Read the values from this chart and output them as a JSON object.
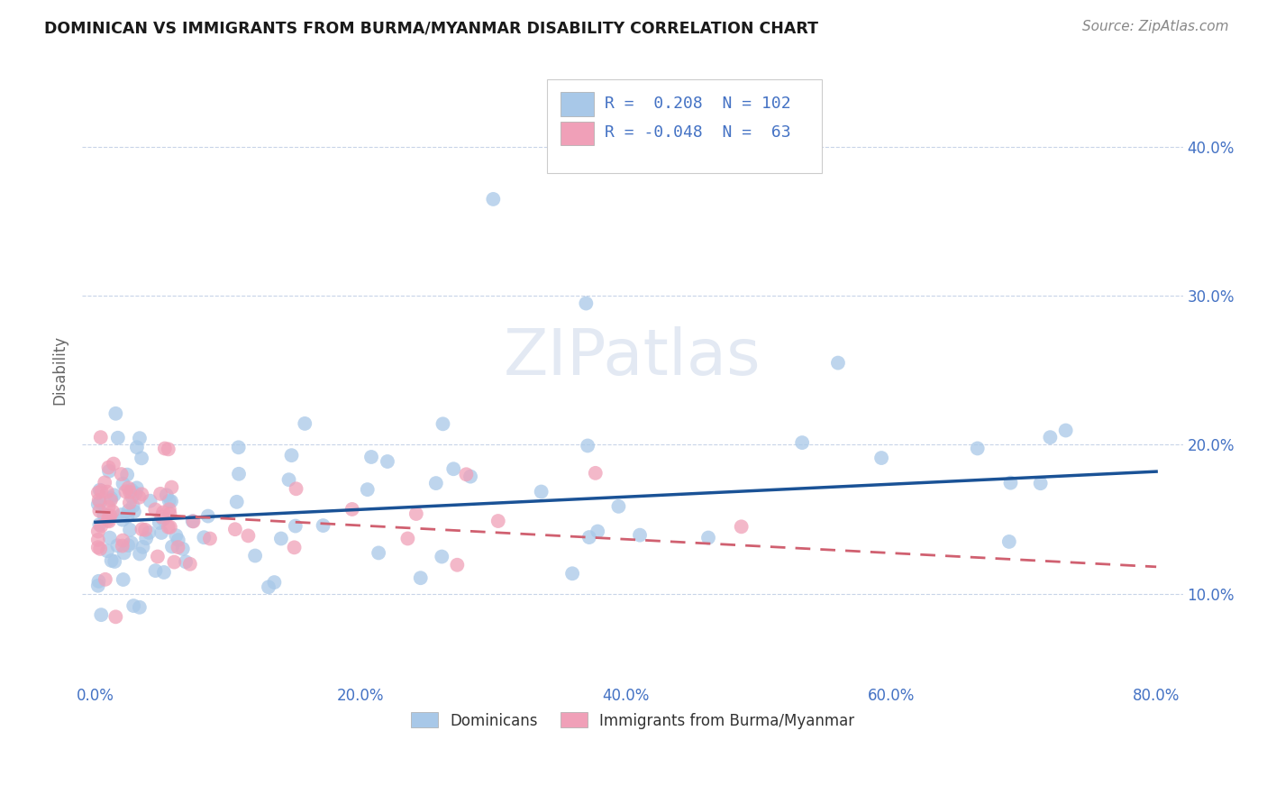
{
  "title": "DOMINICAN VS IMMIGRANTS FROM BURMA/MYANMAR DISABILITY CORRELATION CHART",
  "source": "Source: ZipAtlas.com",
  "ylabel_label": "Disability",
  "legend_r1_text": "R =  0.208  N = 102",
  "legend_r2_text": "R = -0.048  N =  63",
  "color_blue": "#a8c8e8",
  "color_blue_line": "#1a5296",
  "color_pink": "#f0a0b8",
  "color_pink_line": "#d06070",
  "color_text": "#4472c4",
  "color_grid": "#c8d4e8",
  "background": "#ffffff",
  "xlim": [
    -0.01,
    0.82
  ],
  "ylim": [
    0.04,
    0.46
  ],
  "xtick_vals": [
    0.0,
    0.2,
    0.4,
    0.6,
    0.8
  ],
  "xtick_labels": [
    "0.0%",
    "20.0%",
    "40.0%",
    "60.0%",
    "80.0%"
  ],
  "ytick_vals": [
    0.1,
    0.2,
    0.3,
    0.4
  ],
  "ytick_labels": [
    "10.0%",
    "20.0%",
    "30.0%",
    "40.0%"
  ],
  "dom_trend_x0": 0.0,
  "dom_trend_y0": 0.148,
  "dom_trend_x1": 0.8,
  "dom_trend_y1": 0.182,
  "bur_trend_x0": 0.0,
  "bur_trend_y0": 0.155,
  "bur_trend_x1": 0.8,
  "bur_trend_y1": 0.118
}
